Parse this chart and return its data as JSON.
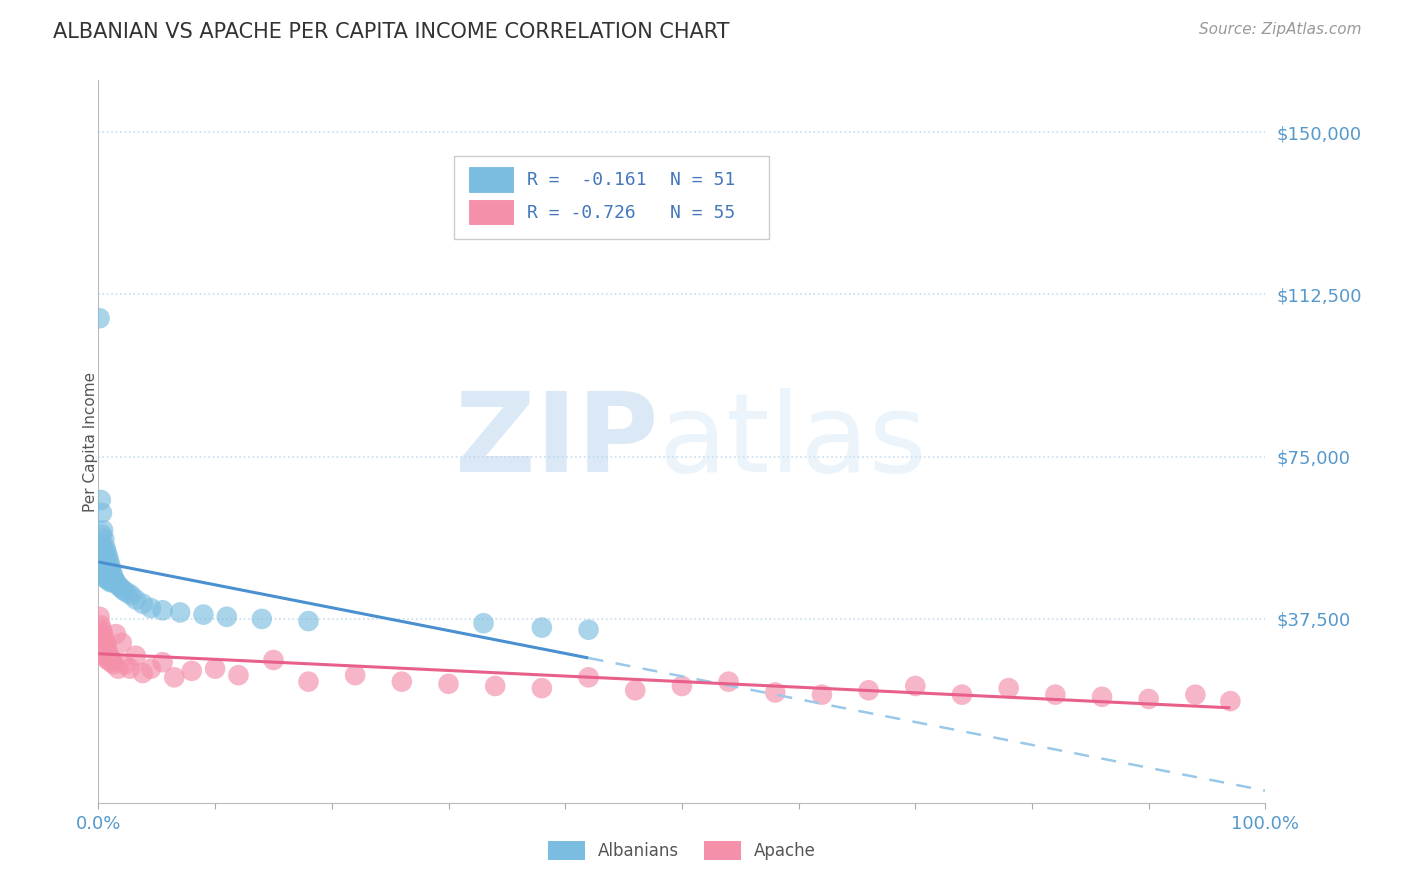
{
  "title": "ALBANIAN VS APACHE PER CAPITA INCOME CORRELATION CHART",
  "source": "Source: ZipAtlas.com",
  "ylabel": "Per Capita Income",
  "ytick_labels": [
    "$37,500",
    "$75,000",
    "$112,500",
    "$150,000"
  ],
  "ytick_values": [
    37500,
    75000,
    112500,
    150000
  ],
  "ylim": [
    -5000,
    162000
  ],
  "xlim": [
    0.0,
    1.0
  ],
  "albanian_color": "#7bbde0",
  "apache_color": "#f490aa",
  "albanian_line_color": "#4a90d0",
  "apache_line_color": "#e8608a",
  "dashed_line_color": "#99c8e8",
  "background_color": "#ffffff",
  "grid_color": "#c8dded",
  "title_color": "#333333",
  "title_fontsize": 15,
  "legend_r1": "R =  -0.161",
  "legend_n1": "N = 51",
  "legend_r2": "R = -0.726",
  "legend_n2": "N = 55",
  "albanian_x": [
    0.001,
    0.002,
    0.002,
    0.003,
    0.003,
    0.003,
    0.004,
    0.004,
    0.004,
    0.005,
    0.005,
    0.005,
    0.005,
    0.006,
    0.006,
    0.006,
    0.007,
    0.007,
    0.007,
    0.008,
    0.008,
    0.008,
    0.009,
    0.009,
    0.01,
    0.01,
    0.01,
    0.011,
    0.012,
    0.012,
    0.013,
    0.014,
    0.015,
    0.016,
    0.018,
    0.02,
    0.022,
    0.025,
    0.028,
    0.032,
    0.038,
    0.045,
    0.055,
    0.07,
    0.09,
    0.11,
    0.14,
    0.18,
    0.33,
    0.38,
    0.42
  ],
  "albanian_y": [
    107000,
    65000,
    55000,
    62000,
    57000,
    52000,
    58000,
    54000,
    50000,
    56000,
    52000,
    49000,
    47000,
    54000,
    51000,
    48000,
    53000,
    50000,
    47000,
    52000,
    49000,
    46500,
    51000,
    48000,
    50000,
    48000,
    46000,
    49000,
    48000,
    46000,
    47000,
    46500,
    46000,
    45500,
    45000,
    44500,
    44000,
    43500,
    43000,
    42000,
    41000,
    40000,
    39500,
    39000,
    38500,
    38000,
    37500,
    37000,
    36500,
    35500,
    35000
  ],
  "apache_x": [
    0.001,
    0.002,
    0.002,
    0.003,
    0.003,
    0.004,
    0.004,
    0.005,
    0.005,
    0.006,
    0.006,
    0.007,
    0.007,
    0.008,
    0.008,
    0.009,
    0.01,
    0.011,
    0.012,
    0.013,
    0.015,
    0.017,
    0.02,
    0.023,
    0.027,
    0.032,
    0.038,
    0.045,
    0.055,
    0.065,
    0.08,
    0.1,
    0.12,
    0.15,
    0.18,
    0.22,
    0.26,
    0.3,
    0.34,
    0.38,
    0.42,
    0.46,
    0.5,
    0.54,
    0.58,
    0.62,
    0.66,
    0.7,
    0.74,
    0.78,
    0.82,
    0.86,
    0.9,
    0.94,
    0.97
  ],
  "apache_y": [
    38000,
    36000,
    34000,
    35000,
    32000,
    34000,
    31000,
    33000,
    30000,
    32000,
    29000,
    31500,
    28500,
    30000,
    28000,
    29000,
    28500,
    27500,
    28000,
    27000,
    34000,
    26000,
    32000,
    27000,
    26000,
    29000,
    25000,
    26000,
    27500,
    24000,
    25500,
    26000,
    24500,
    28000,
    23000,
    24500,
    23000,
    22500,
    22000,
    21500,
    24000,
    21000,
    22000,
    23000,
    20500,
    20000,
    21000,
    22000,
    20000,
    21500,
    20000,
    19500,
    19000,
    20000,
    18500
  ]
}
